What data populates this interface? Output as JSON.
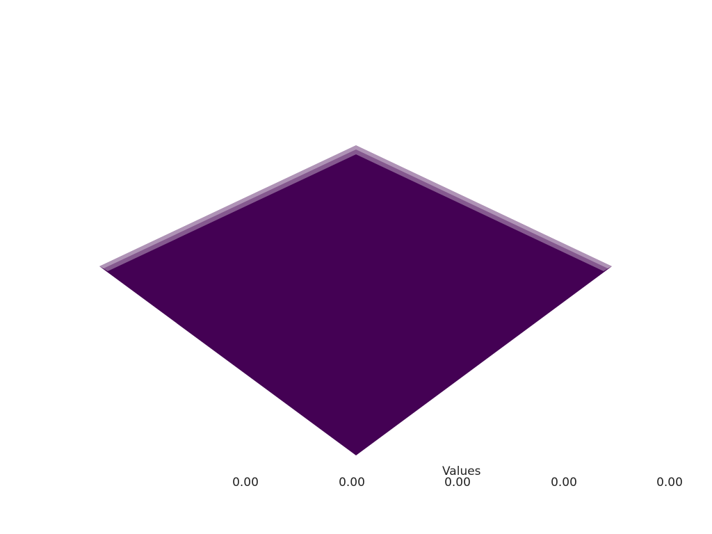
{
  "scene": {
    "surface_color": "#440154",
    "background_color": "#ffffff"
  },
  "scalar_bar": {
    "title": "Values",
    "tick_labels": [
      "0.00",
      "0.00",
      "0.00",
      "0.00",
      "0.00"
    ]
  }
}
